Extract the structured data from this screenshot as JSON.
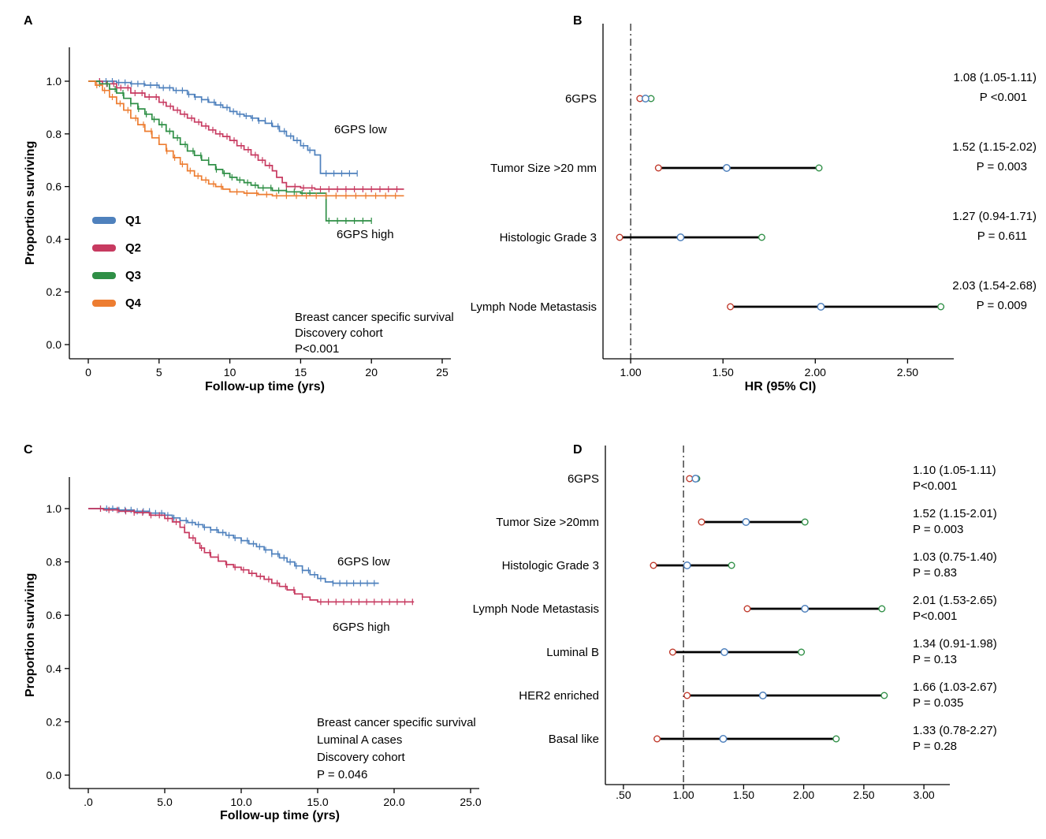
{
  "figure": {
    "background": "#ffffff"
  },
  "panels": {
    "a": {
      "letter": "A",
      "xlabel": "Follow-up time (yrs)",
      "ylabel": "Proportion surviving",
      "annotation_low": "6GPS low",
      "annotation_high": "6GPS high",
      "footnote": [
        "Breast cancer specific survival",
        "Discovery cohort",
        "P<0.001"
      ]
    },
    "b": {
      "letter": "B",
      "xlabel": "HR (95% CI)"
    },
    "c": {
      "letter": "C",
      "xlabel": "Follow-up time (yrs)",
      "ylabel": "Proportion surviving",
      "annotation_low": "6GPS low",
      "annotation_high": "6GPS high",
      "footnote": [
        "Breast cancer specific survival",
        "Luminal A cases",
        "Discovery cohort",
        "P = 0.046"
      ]
    },
    "d": {
      "letter": "D"
    }
  },
  "chart_data": [
    {
      "panel": "A",
      "type": "line",
      "subtype": "kaplan-meier",
      "title": "",
      "xlabel": "Follow-up time (yrs)",
      "ylabel": "Proportion surviving",
      "xlim": [
        0,
        25
      ],
      "ylim": [
        0.0,
        1.0
      ],
      "xticks": [
        0,
        5,
        10,
        15,
        20,
        25
      ],
      "xtick_labels": [
        "0",
        "5",
        "10",
        "15",
        "20",
        "25"
      ],
      "yticks": [
        0.0,
        0.2,
        0.4,
        0.6,
        0.8,
        1.0
      ],
      "ytick_labels": [
        "0.0",
        "0.2",
        "0.4",
        "0.6",
        "0.8",
        "1.0"
      ],
      "grid": false,
      "legend_position": "left-middle",
      "annotations": [
        "6GPS low",
        "6GPS high",
        "Breast cancer specific survival",
        "Discovery cohort",
        "P<0.001"
      ],
      "series": [
        {
          "name": "Q1",
          "color": "#4f81bd",
          "steps": [
            [
              0,
              1.0
            ],
            [
              1.5,
              1.0
            ],
            [
              2,
              0.995
            ],
            [
              3,
              0.99
            ],
            [
              4,
              0.985
            ],
            [
              5,
              0.975
            ],
            [
              6,
              0.965
            ],
            [
              7,
              0.95
            ],
            [
              7.5,
              0.94
            ],
            [
              8,
              0.93
            ],
            [
              8.5,
              0.92
            ],
            [
              9,
              0.91
            ],
            [
              9.5,
              0.9
            ],
            [
              10,
              0.885
            ],
            [
              10.5,
              0.875
            ],
            [
              11,
              0.868
            ],
            [
              11.5,
              0.86
            ],
            [
              12,
              0.85
            ],
            [
              12.5,
              0.84
            ],
            [
              13,
              0.828
            ],
            [
              13.5,
              0.81
            ],
            [
              14,
              0.792
            ],
            [
              14.5,
              0.775
            ],
            [
              15,
              0.755
            ],
            [
              15.5,
              0.738
            ],
            [
              16,
              0.72
            ],
            [
              16.4,
              0.65
            ],
            [
              19,
              0.65
            ]
          ],
          "censor_ranges": [
            [
              0.8,
              15.8,
              0.45
            ],
            [
              16.8,
              19,
              0.55
            ]
          ]
        },
        {
          "name": "Q2",
          "color": "#c73a60",
          "steps": [
            [
              0,
              1.0
            ],
            [
              1,
              0.99
            ],
            [
              2,
              0.975
            ],
            [
              3,
              0.955
            ],
            [
              4,
              0.94
            ],
            [
              5,
              0.92
            ],
            [
              5.5,
              0.905
            ],
            [
              6,
              0.89
            ],
            [
              6.5,
              0.875
            ],
            [
              7,
              0.86
            ],
            [
              7.5,
              0.845
            ],
            [
              8,
              0.83
            ],
            [
              8.5,
              0.815
            ],
            [
              9,
              0.8
            ],
            [
              9.5,
              0.79
            ],
            [
              10,
              0.775
            ],
            [
              10.5,
              0.755
            ],
            [
              11,
              0.74
            ],
            [
              11.5,
              0.72
            ],
            [
              12,
              0.7
            ],
            [
              12.5,
              0.68
            ],
            [
              13,
              0.66
            ],
            [
              13.3,
              0.635
            ],
            [
              13.7,
              0.615
            ],
            [
              14,
              0.6
            ],
            [
              15,
              0.595
            ],
            [
              16,
              0.59
            ],
            [
              22.3,
              0.59
            ]
          ],
          "censor_ranges": [
            [
              0.8,
              13,
              0.5
            ],
            [
              14,
              22.3,
              0.6
            ]
          ]
        },
        {
          "name": "Q3",
          "color": "#2f8f46",
          "steps": [
            [
              0,
              1.0
            ],
            [
              0.8,
              0.99
            ],
            [
              1.5,
              0.97
            ],
            [
              2,
              0.955
            ],
            [
              2.5,
              0.935
            ],
            [
              3,
              0.915
            ],
            [
              3.5,
              0.895
            ],
            [
              4,
              0.875
            ],
            [
              4.5,
              0.855
            ],
            [
              5,
              0.835
            ],
            [
              5.5,
              0.81
            ],
            [
              6,
              0.785
            ],
            [
              6.5,
              0.76
            ],
            [
              7,
              0.735
            ],
            [
              7.5,
              0.718
            ],
            [
              8,
              0.7
            ],
            [
              8.5,
              0.683
            ],
            [
              9,
              0.665
            ],
            [
              9.5,
              0.65
            ],
            [
              10,
              0.635
            ],
            [
              10.5,
              0.625
            ],
            [
              11,
              0.615
            ],
            [
              11.5,
              0.605
            ],
            [
              12,
              0.595
            ],
            [
              13,
              0.585
            ],
            [
              14,
              0.58
            ],
            [
              15,
              0.575
            ],
            [
              16.5,
              0.575
            ],
            [
              16.8,
              0.47
            ],
            [
              20,
              0.47
            ]
          ],
          "censor_ranges": [
            [
              0.8,
              16,
              0.55
            ],
            [
              17,
              20,
              0.6
            ]
          ]
        },
        {
          "name": "Q4",
          "color": "#ed7d31",
          "steps": [
            [
              0,
              1.0
            ],
            [
              0.5,
              0.985
            ],
            [
              1,
              0.965
            ],
            [
              1.5,
              0.94
            ],
            [
              2,
              0.915
            ],
            [
              2.5,
              0.89
            ],
            [
              3,
              0.86
            ],
            [
              3.5,
              0.835
            ],
            [
              4,
              0.81
            ],
            [
              4.5,
              0.785
            ],
            [
              5,
              0.76
            ],
            [
              5.5,
              0.735
            ],
            [
              6,
              0.71
            ],
            [
              6.5,
              0.685
            ],
            [
              7,
              0.66
            ],
            [
              7.5,
              0.64
            ],
            [
              8,
              0.625
            ],
            [
              8.5,
              0.61
            ],
            [
              9,
              0.6
            ],
            [
              9.5,
              0.59
            ],
            [
              10,
              0.58
            ],
            [
              11,
              0.575
            ],
            [
              12,
              0.57
            ],
            [
              13,
              0.565
            ],
            [
              22.3,
              0.565
            ]
          ],
          "censor_ranges": [
            [
              0.6,
              9.5,
              0.55
            ],
            [
              10.5,
              22.3,
              0.7
            ]
          ]
        }
      ]
    },
    {
      "panel": "B",
      "type": "scatter",
      "subtype": "forest-plot",
      "xlabel": "HR (95% CI)",
      "xlim": [
        0.85,
        2.75
      ],
      "xticks": [
        1.0,
        1.5,
        2.0,
        2.5
      ],
      "xtick_labels": [
        "1.00",
        "1.50",
        "2.00",
        "2.50"
      ],
      "ref_line": 1.0,
      "marker_colors": {
        "low": "#c0392b",
        "mid": "#4f81bd",
        "high": "#2f8f46"
      },
      "rows": [
        {
          "label": "6GPS",
          "hr": 1.08,
          "ci_low": 1.05,
          "ci_high": 1.11,
          "value_text": "1.08 (1.05-1.11)",
          "p_text": "P <0.001"
        },
        {
          "label": "Tumor Size >20 mm",
          "hr": 1.52,
          "ci_low": 1.15,
          "ci_high": 2.02,
          "value_text": "1.52 (1.15-2.02)",
          "p_text": "P = 0.003"
        },
        {
          "label": "Histologic Grade 3",
          "hr": 1.27,
          "ci_low": 0.94,
          "ci_high": 1.71,
          "value_text": "1.27 (0.94-1.71)",
          "p_text": "P = 0.611"
        },
        {
          "label": "Lymph Node Metastasis",
          "hr": 2.03,
          "ci_low": 1.54,
          "ci_high": 2.68,
          "value_text": "2.03 (1.54-2.68)",
          "p_text": "P = 0.009"
        }
      ]
    },
    {
      "panel": "C",
      "type": "line",
      "subtype": "kaplan-meier",
      "title": "",
      "xlabel": "Follow-up time (yrs)",
      "ylabel": "Proportion surviving",
      "xlim": [
        0,
        25
      ],
      "ylim": [
        0.0,
        1.0
      ],
      "xticks": [
        0,
        5,
        10,
        15,
        20,
        25
      ],
      "xtick_labels": [
        ".0",
        "5.0",
        "10.0",
        "15.0",
        "20.0",
        "25.0"
      ],
      "yticks": [
        0.0,
        0.2,
        0.4,
        0.6,
        0.8,
        1.0
      ],
      "ytick_labels": [
        "0.0",
        "0.2",
        "0.4",
        "0.6",
        "0.8",
        "1.0"
      ],
      "grid": false,
      "annotations": [
        "6GPS low",
        "6GPS high",
        "Breast cancer specific survival",
        "Luminal A cases",
        "Discovery cohort",
        "P = 0.046"
      ],
      "series": [
        {
          "name": "6GPS low",
          "color": "#4f81bd",
          "steps": [
            [
              0,
              1.0
            ],
            [
              1.5,
              1.0
            ],
            [
              2,
              0.995
            ],
            [
              3,
              0.99
            ],
            [
              4,
              0.983
            ],
            [
              5,
              0.975
            ],
            [
              5.5,
              0.965
            ],
            [
              6,
              0.955
            ],
            [
              6.5,
              0.948
            ],
            [
              7,
              0.94
            ],
            [
              7.5,
              0.93
            ],
            [
              8,
              0.92
            ],
            [
              8.5,
              0.91
            ],
            [
              9,
              0.9
            ],
            [
              9.5,
              0.89
            ],
            [
              10,
              0.88
            ],
            [
              10.5,
              0.868
            ],
            [
              11,
              0.857
            ],
            [
              11.5,
              0.845
            ],
            [
              12,
              0.83
            ],
            [
              12.5,
              0.815
            ],
            [
              13,
              0.8
            ],
            [
              13.5,
              0.785
            ],
            [
              14,
              0.768
            ],
            [
              14.5,
              0.752
            ],
            [
              15,
              0.738
            ],
            [
              15.5,
              0.725
            ],
            [
              16,
              0.72
            ],
            [
              19,
              0.72
            ]
          ],
          "censor_ranges": [
            [
              0.8,
              15.5,
              0.4
            ],
            [
              16,
              19,
              0.45
            ]
          ]
        },
        {
          "name": "6GPS high",
          "color": "#c73a60",
          "steps": [
            [
              0,
              1.0
            ],
            [
              1,
              0.995
            ],
            [
              2,
              0.99
            ],
            [
              3,
              0.985
            ],
            [
              4,
              0.975
            ],
            [
              5,
              0.963
            ],
            [
              5.5,
              0.95
            ],
            [
              6,
              0.93
            ],
            [
              6.3,
              0.91
            ],
            [
              6.6,
              0.89
            ],
            [
              7,
              0.87
            ],
            [
              7.3,
              0.852
            ],
            [
              7.6,
              0.835
            ],
            [
              8,
              0.818
            ],
            [
              8.5,
              0.803
            ],
            [
              9,
              0.79
            ],
            [
              9.5,
              0.78
            ],
            [
              10,
              0.77
            ],
            [
              10.5,
              0.757
            ],
            [
              11,
              0.746
            ],
            [
              11.5,
              0.735
            ],
            [
              12,
              0.72
            ],
            [
              12.5,
              0.708
            ],
            [
              13,
              0.695
            ],
            [
              13.5,
              0.68
            ],
            [
              14,
              0.668
            ],
            [
              14.5,
              0.657
            ],
            [
              15,
              0.65
            ],
            [
              21.3,
              0.65
            ]
          ],
          "censor_ranges": [
            [
              0.8,
              14.5,
              0.55
            ],
            [
              15.2,
              21.3,
              0.5
            ]
          ]
        }
      ]
    },
    {
      "panel": "D",
      "type": "scatter",
      "subtype": "forest-plot",
      "xlabel": "",
      "xlim": [
        0.35,
        3.15
      ],
      "xticks": [
        0.5,
        1.0,
        1.5,
        2.0,
        2.5,
        3.0
      ],
      "xtick_labels": [
        ".50",
        "1.00",
        "1.50",
        "2.00",
        "2.50",
        "3.00"
      ],
      "ref_line": 1.0,
      "marker_colors": {
        "low": "#c0392b",
        "mid": "#4f81bd",
        "high": "#2f8f46"
      },
      "rows": [
        {
          "label": "6GPS",
          "hr": 1.1,
          "ci_low": 1.05,
          "ci_high": 1.11,
          "value_text": "1.10 (1.05-1.11)",
          "p_text": "P<0.001"
        },
        {
          "label": "Tumor Size >20mm",
          "hr": 1.52,
          "ci_low": 1.15,
          "ci_high": 2.01,
          "value_text": "1.52 (1.15-2.01)",
          "p_text": "P = 0.003"
        },
        {
          "label": "Histologic Grade 3",
          "hr": 1.03,
          "ci_low": 0.75,
          "ci_high": 1.4,
          "value_text": "1.03 (0.75-1.40)",
          "p_text": "P = 0.83"
        },
        {
          "label": "Lymph Node Metastasis",
          "hr": 2.01,
          "ci_low": 1.53,
          "ci_high": 2.65,
          "value_text": "2.01 (1.53-2.65)",
          "p_text": "P<0.001"
        },
        {
          "label": "Luminal B",
          "hr": 1.34,
          "ci_low": 0.91,
          "ci_high": 1.98,
          "value_text": "1.34 (0.91-1.98)",
          "p_text": "P = 0.13"
        },
        {
          "label": "HER2 enriched",
          "hr": 1.66,
          "ci_low": 1.03,
          "ci_high": 2.67,
          "value_text": "1.66 (1.03-2.67)",
          "p_text": "P = 0.035"
        },
        {
          "label": "Basal like",
          "hr": 1.33,
          "ci_low": 0.78,
          "ci_high": 2.27,
          "value_text": "1.33 (0.78-2.27)",
          "p_text": "P = 0.28"
        }
      ]
    }
  ]
}
